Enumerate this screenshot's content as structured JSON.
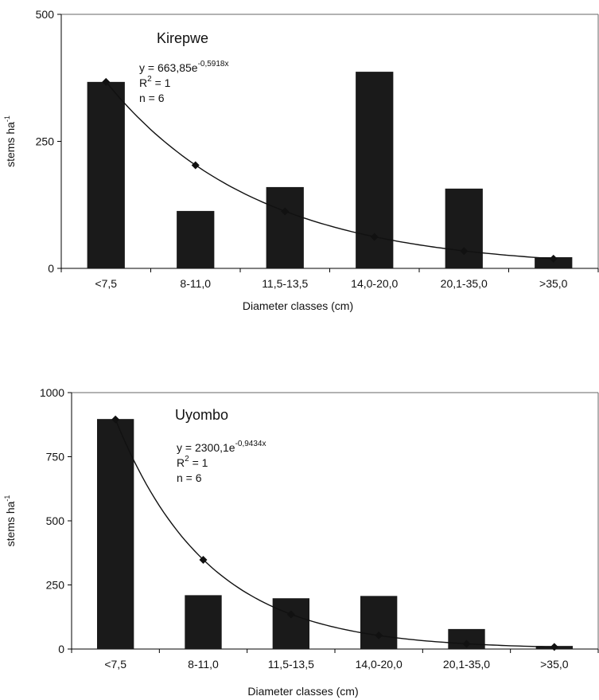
{
  "chart_data": [
    {
      "type": "bar",
      "title": "Kirepwe",
      "xlabel": "Diameter classes (cm)",
      "ylabel": "stems ha",
      "ylabel_sup": "-1",
      "ylim": [
        0,
        500
      ],
      "yticks": [
        0,
        250,
        500
      ],
      "categories": [
        "<7,5",
        "8-11,0",
        "11,5-13,5",
        "14,0-20,0",
        "20,1-35,0",
        ">35,0"
      ],
      "values": [
        367,
        113,
        160,
        387,
        157,
        22
      ],
      "trendline": {
        "type": "exponential",
        "a": 663.85,
        "b": -0.5918,
        "equation_prefix": "y = 663,85e",
        "equation_exponent": "-0,5918x",
        "r2_prefix": "R",
        "r2_sup": "2",
        "r2_suffix": " = 1",
        "n_label": "n = 6",
        "fitted": [
          367,
          203,
          112,
          62,
          34,
          19
        ]
      },
      "grid": false
    },
    {
      "type": "bar",
      "title": "Uyombo",
      "xlabel": "Diameter classes (cm)",
      "ylabel": "stems ha",
      "ylabel_sup": "-1",
      "ylim": [
        0,
        1000
      ],
      "yticks": [
        0,
        250,
        500,
        750,
        1000
      ],
      "categories": [
        "<7,5",
        "8-11,0",
        "11,5-13,5",
        "14,0-20,0",
        "20,1-35,0",
        ">35,0"
      ],
      "values": [
        897,
        210,
        198,
        207,
        78,
        12
      ],
      "trendline": {
        "type": "exponential",
        "a": 2300.1,
        "b": -0.9434,
        "equation_prefix": "y = 2300,1e",
        "equation_exponent": "-0,9434x",
        "r2_prefix": "R",
        "r2_sup": "2",
        "r2_suffix": " = 1",
        "n_label": "n = 6",
        "fitted": [
          895,
          348,
          135,
          53,
          20,
          8
        ]
      },
      "grid": false
    }
  ]
}
